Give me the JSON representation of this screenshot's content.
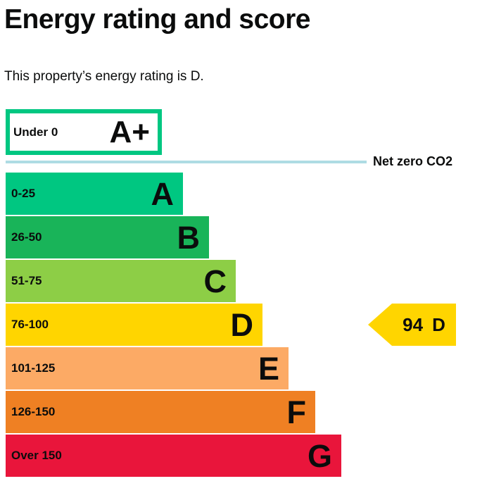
{
  "page": {
    "title": "Energy rating and score",
    "subtitle": "This property’s energy rating is D."
  },
  "chart_data": {
    "type": "bar",
    "title": "Energy rating and score",
    "subtitle": "This property’s energy rating is D.",
    "text_color": "#0b0c0c",
    "net_zero": {
      "label": "Net zero CO2",
      "line_color": "#aedce3"
    },
    "bands": [
      {
        "label": "Under 0",
        "letter": "A+",
        "fill": "#ffffff",
        "border_color": "#00c781"
      },
      {
        "label": "0-25",
        "letter": "A",
        "fill": "#00c781"
      },
      {
        "label": "26-50",
        "letter": "B",
        "fill": "#19b459"
      },
      {
        "label": "51-75",
        "letter": "C",
        "fill": "#8dce46"
      },
      {
        "label": "76-100",
        "letter": "D",
        "fill": "#ffd500"
      },
      {
        "label": "101-125",
        "letter": "E",
        "fill": "#fcaa65"
      },
      {
        "label": "126-150",
        "letter": "F",
        "fill": "#ef8023"
      },
      {
        "label": "Over 150",
        "letter": "G",
        "fill": "#e9153b"
      }
    ],
    "current_rating": {
      "score": "94",
      "band": "D",
      "arrow_color": "#ffd500"
    }
  }
}
